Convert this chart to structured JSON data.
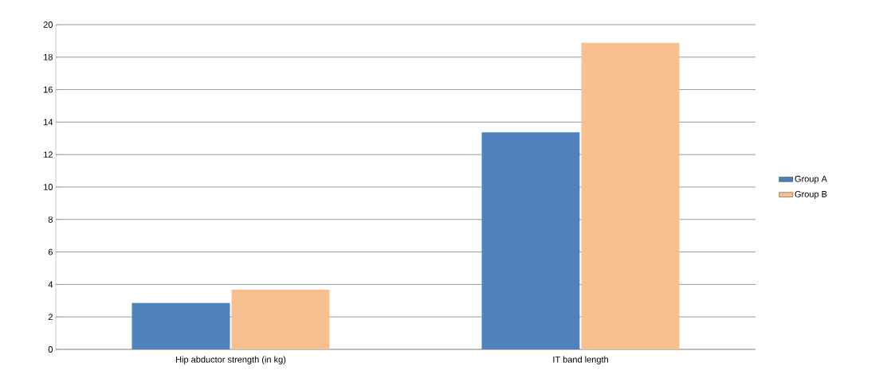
{
  "chart_data": {
    "type": "bar",
    "categories": [
      "Hip abductor strength (in kg)",
      "IT band length"
    ],
    "series": [
      {
        "name": "Group A",
        "color": "#4f81bd",
        "values": [
          2.86,
          13.37
        ]
      },
      {
        "name": "Group B",
        "color": "#f9c08f",
        "values": [
          3.68,
          18.88
        ]
      }
    ],
    "ylim": [
      0,
      20
    ],
    "yticks": [
      0,
      2,
      4,
      6,
      8,
      10,
      12,
      14,
      16,
      18,
      20
    ],
    "grid": "y",
    "legend": "right"
  }
}
